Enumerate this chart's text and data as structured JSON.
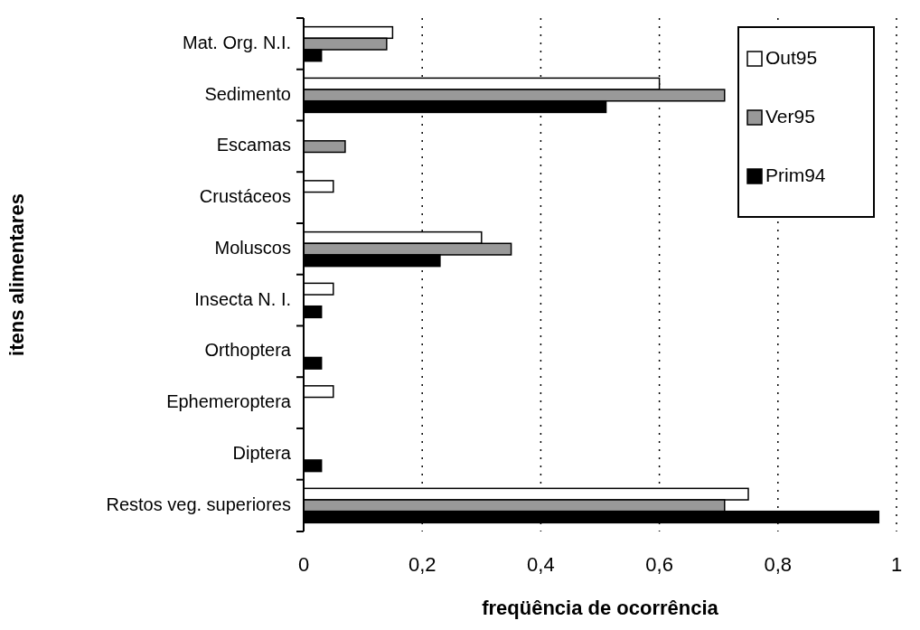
{
  "chart_data": {
    "type": "bar",
    "orientation": "horizontal",
    "xlabel": "freqüência de ocorrência",
    "ylabel": "itens alimentares",
    "categories": [
      "Mat. Org. N.I.",
      "Sedimento",
      "Escamas",
      "Crustáceos",
      "Moluscos",
      "Insecta N. I.",
      "Orthoptera",
      "Ephemeroptera",
      "Diptera",
      "Restos veg. superiores"
    ],
    "series": [
      {
        "name": "Out95",
        "color": "#ffffff",
        "values": [
          0.15,
          0.6,
          null,
          0.05,
          0.3,
          0.05,
          null,
          0.05,
          null,
          0.75
        ]
      },
      {
        "name": "Ver95",
        "color": "#999999",
        "values": [
          0.14,
          0.71,
          0.07,
          null,
          0.35,
          null,
          null,
          null,
          null,
          0.71
        ]
      },
      {
        "name": "Prim94",
        "color": "#000000",
        "values": [
          0.03,
          0.51,
          null,
          null,
          0.23,
          0.03,
          0.03,
          null,
          0.03,
          0.97
        ]
      }
    ],
    "xlim": [
      0,
      1
    ],
    "xticks": [
      0,
      {
        "value": 0.2,
        "label": "0,2"
      },
      {
        "value": 0.4,
        "label": "0,4"
      },
      {
        "value": 0.6,
        "label": "0,6"
      },
      {
        "value": 0.8,
        "label": "0,8"
      },
      1
    ],
    "grid": "x",
    "legend": "top right"
  }
}
